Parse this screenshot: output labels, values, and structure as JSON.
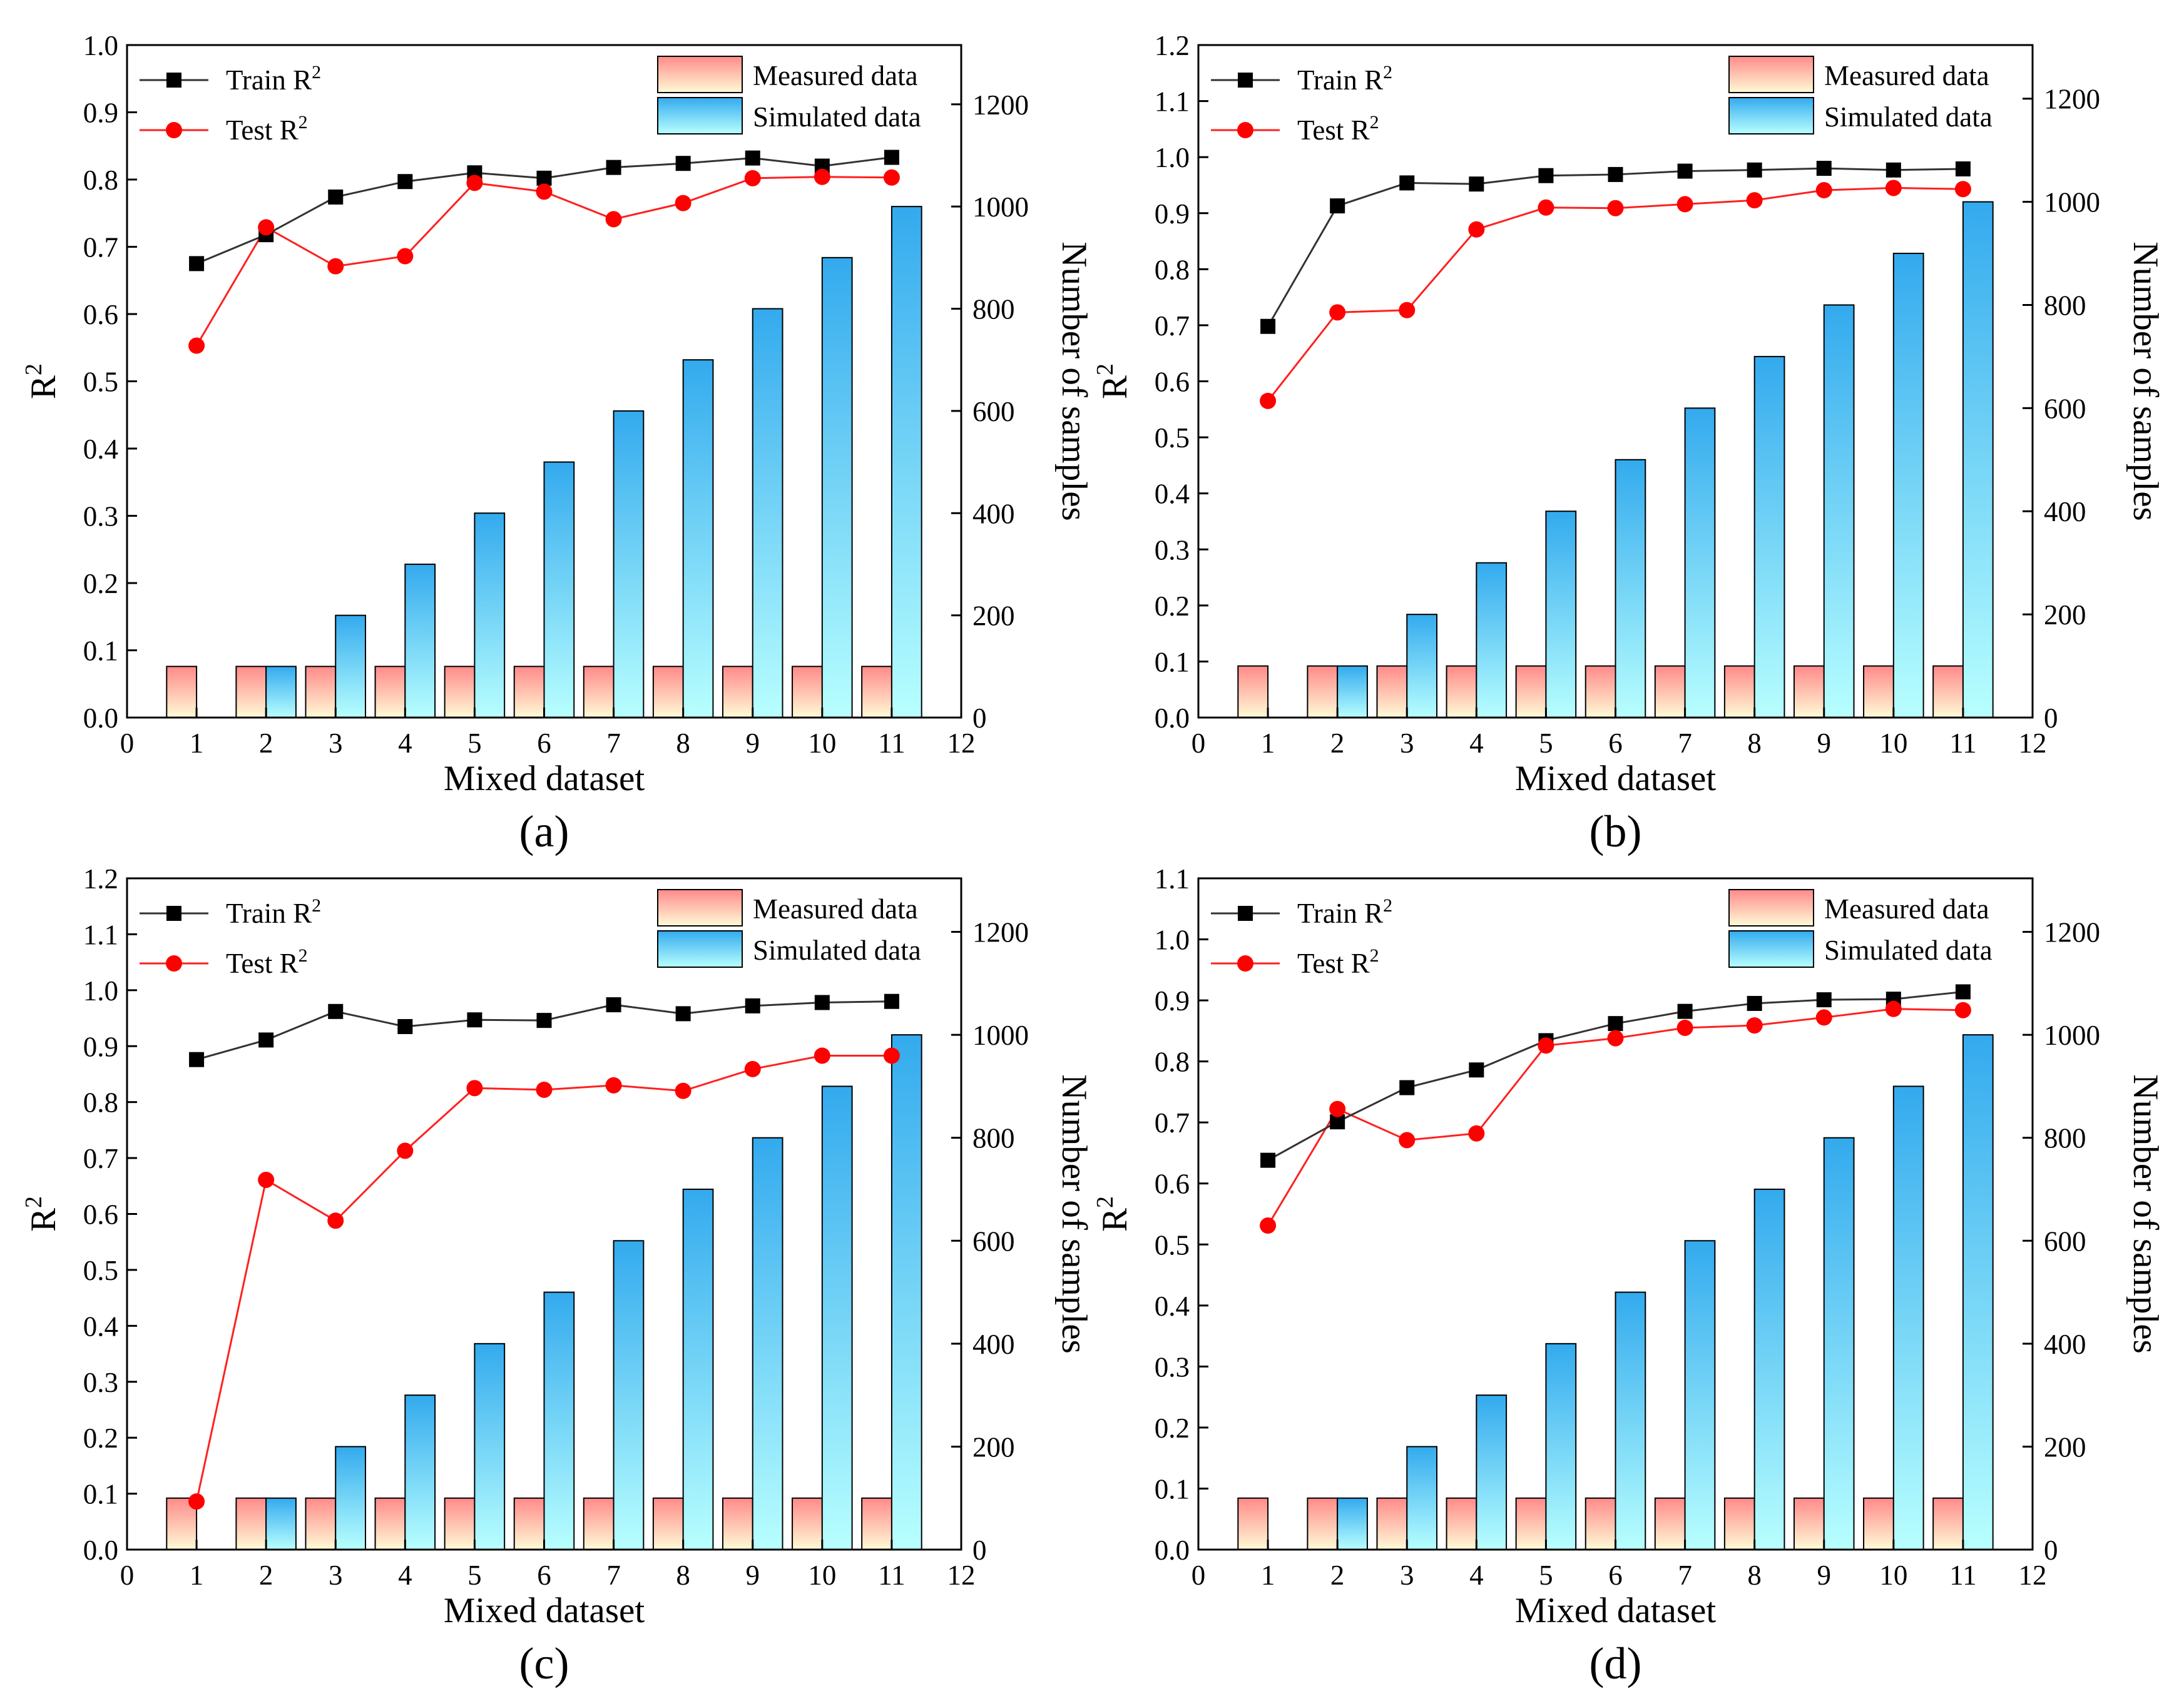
{
  "figure": {
    "background": "#ffffff"
  },
  "series_style": {
    "train_color": "#000000",
    "test_color": "#ff0000",
    "line_color_train": "#333333",
    "line_color_test": "#ff2020",
    "measured_gradient": [
      "#ff8a8a",
      "#fffbd6"
    ],
    "simulated_gradient": [
      "#33aaee",
      "#b8ffff"
    ]
  },
  "chart_data": [
    {
      "id": "a",
      "type": "bar+line",
      "caption": "(a)",
      "xlabel": "Mixed dataset",
      "ylabel": "R",
      "ylabel_sup": "2",
      "y2label": "Number of samples",
      "xlim": [
        0,
        12
      ],
      "xticks": [
        0,
        1,
        2,
        3,
        4,
        5,
        6,
        7,
        8,
        9,
        10,
        11,
        12
      ],
      "ylim": [
        0,
        1.0
      ],
      "yticks": [
        "0.0",
        "0.1",
        "0.2",
        "0.3",
        "0.4",
        "0.5",
        "0.6",
        "0.7",
        "0.8",
        "0.9",
        "1.0"
      ],
      "y2lim": [
        0,
        1316
      ],
      "y2ticks": [
        0,
        200,
        400,
        600,
        800,
        1000,
        1200
      ],
      "x": [
        1,
        2,
        3,
        4,
        5,
        6,
        7,
        8,
        9,
        10,
        11
      ],
      "bars": [
        {
          "name": "Measured data",
          "values": [
            100,
            100,
            100,
            100,
            100,
            100,
            100,
            100,
            100,
            100,
            100
          ]
        },
        {
          "name": "Simulated data",
          "values": [
            0,
            100,
            200,
            300,
            400,
            500,
            600,
            700,
            800,
            900,
            1000
          ]
        }
      ],
      "lines": [
        {
          "name": "Train R",
          "values": [
            0.675,
            0.718,
            0.774,
            0.797,
            0.81,
            0.802,
            0.818,
            0.824,
            0.832,
            0.82,
            0.833
          ]
        },
        {
          "name": "Test R",
          "values": [
            0.553,
            0.729,
            0.671,
            0.686,
            0.795,
            0.782,
            0.741,
            0.765,
            0.802,
            0.804,
            0.803
          ]
        }
      ],
      "legend": {
        "train": "Train R",
        "test": "Test R",
        "sup": "2",
        "measured": "Measured data",
        "simulated": "Simulated data"
      }
    },
    {
      "id": "b",
      "type": "bar+line",
      "caption": "(b)",
      "xlabel": "Mixed dataset",
      "ylabel": "R",
      "ylabel_sup": "2",
      "y2label": "Number of samples",
      "xlim": [
        0,
        12
      ],
      "xticks": [
        0,
        1,
        2,
        3,
        4,
        5,
        6,
        7,
        8,
        9,
        10,
        11,
        12
      ],
      "ylim": [
        0,
        1.2
      ],
      "yticks": [
        "0.0",
        "0.1",
        "0.2",
        "0.3",
        "0.4",
        "0.5",
        "0.6",
        "0.7",
        "0.8",
        "0.9",
        "1.0",
        "1.1",
        "1.2"
      ],
      "y2lim": [
        0,
        1304
      ],
      "y2ticks": [
        0,
        200,
        400,
        600,
        800,
        1000,
        1200
      ],
      "x": [
        1,
        2,
        3,
        4,
        5,
        6,
        7,
        8,
        9,
        10,
        11
      ],
      "bars": [
        {
          "name": "Measured data",
          "values": [
            100,
            100,
            100,
            100,
            100,
            100,
            100,
            100,
            100,
            100,
            100
          ]
        },
        {
          "name": "Simulated data",
          "values": [
            0,
            100,
            200,
            300,
            400,
            500,
            600,
            700,
            800,
            900,
            1000
          ]
        }
      ],
      "lines": [
        {
          "name": "Train R",
          "values": [
            0.698,
            0.913,
            0.954,
            0.952,
            0.967,
            0.969,
            0.975,
            0.977,
            0.98,
            0.977,
            0.979
          ]
        },
        {
          "name": "Test R",
          "values": [
            0.565,
            0.723,
            0.727,
            0.871,
            0.91,
            0.909,
            0.916,
            0.923,
            0.941,
            0.945,
            0.943
          ]
        }
      ],
      "legend": {
        "train": "Train R",
        "test": "Test R",
        "sup": "2",
        "measured": "Measured data",
        "simulated": "Simulated data"
      }
    },
    {
      "id": "c",
      "type": "bar+line",
      "caption": "(c)",
      "xlabel": "Mixed dataset",
      "ylabel": "R",
      "ylabel_sup": "2",
      "y2label": "Number of samples",
      "xlim": [
        0,
        12
      ],
      "xticks": [
        0,
        1,
        2,
        3,
        4,
        5,
        6,
        7,
        8,
        9,
        10,
        11,
        12
      ],
      "ylim": [
        0,
        1.2
      ],
      "yticks": [
        "0.0",
        "0.1",
        "0.2",
        "0.3",
        "0.4",
        "0.5",
        "0.6",
        "0.7",
        "0.8",
        "0.9",
        "1.0",
        "1.1",
        "1.2"
      ],
      "y2lim": [
        0,
        1304
      ],
      "y2ticks": [
        0,
        200,
        400,
        600,
        800,
        1000,
        1200
      ],
      "x": [
        1,
        2,
        3,
        4,
        5,
        6,
        7,
        8,
        9,
        10,
        11
      ],
      "bars": [
        {
          "name": "Measured data",
          "values": [
            100,
            100,
            100,
            100,
            100,
            100,
            100,
            100,
            100,
            100,
            100
          ]
        },
        {
          "name": "Simulated data",
          "values": [
            0,
            100,
            200,
            300,
            400,
            500,
            600,
            700,
            800,
            900,
            1000
          ]
        }
      ],
      "lines": [
        {
          "name": "Train R",
          "values": [
            0.876,
            0.911,
            0.962,
            0.935,
            0.947,
            0.946,
            0.974,
            0.958,
            0.972,
            0.978,
            0.98
          ]
        },
        {
          "name": "Test R",
          "values": [
            0.086,
            0.661,
            0.588,
            0.713,
            0.825,
            0.822,
            0.83,
            0.82,
            0.859,
            0.883,
            0.883
          ]
        }
      ],
      "legend": {
        "train": "Train R",
        "test": "Test R",
        "sup": "2",
        "measured": "Measured data",
        "simulated": "Simulated data"
      }
    },
    {
      "id": "d",
      "type": "bar+line",
      "caption": "(d)",
      "xlabel": "Mixed dataset",
      "ylabel": "R",
      "ylabel_sup": "2",
      "y2label": "Number of samples",
      "xlim": [
        0,
        12
      ],
      "xticks": [
        0,
        1,
        2,
        3,
        4,
        5,
        6,
        7,
        8,
        9,
        10,
        11,
        12
      ],
      "ylim": [
        0,
        1.1
      ],
      "yticks": [
        "0.0",
        "0.1",
        "0.2",
        "0.3",
        "0.4",
        "0.5",
        "0.6",
        "0.7",
        "0.8",
        "0.9",
        "1.0",
        "1.1"
      ],
      "y2lim": [
        0,
        1304
      ],
      "y2ticks": [
        0,
        200,
        400,
        600,
        800,
        1000,
        1200
      ],
      "x": [
        1,
        2,
        3,
        4,
        5,
        6,
        7,
        8,
        9,
        10,
        11
      ],
      "bars": [
        {
          "name": "Measured data",
          "values": [
            100,
            100,
            100,
            100,
            100,
            100,
            100,
            100,
            100,
            100,
            100
          ]
        },
        {
          "name": "Simulated data",
          "values": [
            0,
            100,
            200,
            300,
            400,
            500,
            600,
            700,
            800,
            900,
            1000
          ]
        }
      ],
      "lines": [
        {
          "name": "Train R",
          "values": [
            0.638,
            0.701,
            0.757,
            0.786,
            0.834,
            0.862,
            0.882,
            0.895,
            0.901,
            0.902,
            0.914
          ]
        },
        {
          "name": "Test R",
          "values": [
            0.531,
            0.722,
            0.671,
            0.682,
            0.826,
            0.838,
            0.855,
            0.859,
            0.872,
            0.886,
            0.884
          ]
        }
      ],
      "legend": {
        "train": "Train R",
        "test": "Test R",
        "sup": "2",
        "measured": "Measured data",
        "simulated": "Simulated data"
      }
    }
  ]
}
